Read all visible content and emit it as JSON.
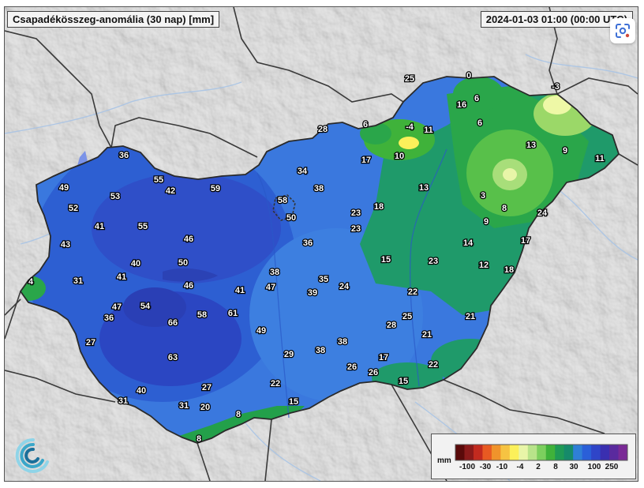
{
  "header": {
    "title": "Csapadékösszeg-anomália (30 nap) [mm]",
    "timestamp": "2024-01-03 01:00 (00:00 UTC)"
  },
  "legend": {
    "unit": "mm",
    "ticks": [
      "-100",
      "-30",
      "-10",
      "-4",
      "2",
      "8",
      "30",
      "100",
      "250"
    ],
    "colors": [
      "#5a0a0a",
      "#8b1a1a",
      "#c22a1f",
      "#e85a22",
      "#f0932b",
      "#f6c342",
      "#fbf05a",
      "#e8f5a8",
      "#b8e38a",
      "#7ccf5e",
      "#3fb23a",
      "#1f9a55",
      "#168a6a",
      "#2f7fd6",
      "#2a5fd8",
      "#2f45c8",
      "#3a2fb0",
      "#5a2a9e",
      "#7a2a96"
    ]
  },
  "map": {
    "values": [
      {
        "v": "25"
      },
      {
        "v": "0"
      },
      {
        "v": "16"
      },
      {
        "v": "6"
      },
      {
        "v": "6"
      },
      {
        "v": "-3"
      },
      {
        "v": "6"
      },
      {
        "v": "-4"
      },
      {
        "v": "11"
      },
      {
        "v": "28"
      },
      {
        "v": "13"
      },
      {
        "v": "9"
      },
      {
        "v": "11"
      },
      {
        "v": "10"
      },
      {
        "v": "17"
      },
      {
        "v": "36"
      },
      {
        "v": "49"
      },
      {
        "v": "55"
      },
      {
        "v": "42"
      },
      {
        "v": "59"
      },
      {
        "v": "34"
      },
      {
        "v": "38"
      },
      {
        "v": "53"
      },
      {
        "v": "52"
      },
      {
        "v": "58"
      },
      {
        "v": "13"
      },
      {
        "v": "3"
      },
      {
        "v": "50"
      },
      {
        "v": "23"
      },
      {
        "v": "18"
      },
      {
        "v": "8"
      },
      {
        "v": "24"
      },
      {
        "v": "41"
      },
      {
        "v": "55"
      },
      {
        "v": "23"
      },
      {
        "v": "9"
      },
      {
        "v": "43"
      },
      {
        "v": "46"
      },
      {
        "v": "36"
      },
      {
        "v": "14"
      },
      {
        "v": "17"
      },
      {
        "v": "40"
      },
      {
        "v": "50"
      },
      {
        "v": "15"
      },
      {
        "v": "23"
      },
      {
        "v": "12"
      },
      {
        "v": "38"
      },
      {
        "v": "18"
      },
      {
        "v": "4"
      },
      {
        "v": "31"
      },
      {
        "v": "41"
      },
      {
        "v": "35"
      },
      {
        "v": "46"
      },
      {
        "v": "41"
      },
      {
        "v": "47"
      },
      {
        "v": "24"
      },
      {
        "v": "39"
      },
      {
        "v": "22"
      },
      {
        "v": "47"
      },
      {
        "v": "54"
      },
      {
        "v": "36"
      },
      {
        "v": "58"
      },
      {
        "v": "61"
      },
      {
        "v": "25"
      },
      {
        "v": "21"
      },
      {
        "v": "66"
      },
      {
        "v": "28"
      },
      {
        "v": "49"
      },
      {
        "v": "21"
      },
      {
        "v": "27"
      },
      {
        "v": "38"
      },
      {
        "v": "38"
      },
      {
        "v": "29"
      },
      {
        "v": "63"
      },
      {
        "v": "17"
      },
      {
        "v": "26"
      },
      {
        "v": "22"
      },
      {
        "v": "26"
      },
      {
        "v": "15"
      },
      {
        "v": "27"
      },
      {
        "v": "40"
      },
      {
        "v": "22"
      },
      {
        "v": "31"
      },
      {
        "v": "15"
      },
      {
        "v": "31"
      },
      {
        "v": "20"
      },
      {
        "v": "8"
      },
      {
        "v": "8"
      }
    ]
  }
}
